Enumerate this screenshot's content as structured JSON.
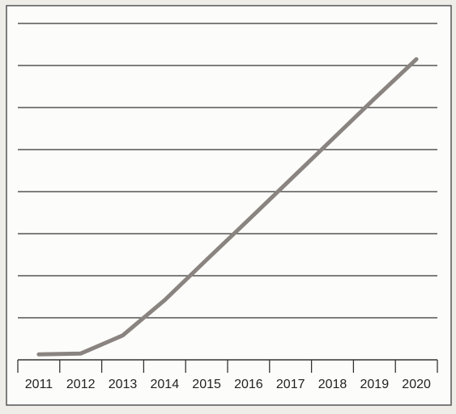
{
  "chart_data": {
    "type": "line",
    "categories": [
      "2011",
      "2012",
      "2013",
      "2014",
      "2015",
      "2016",
      "2017",
      "2018",
      "2019",
      "2020"
    ],
    "values": [
      0.13,
      0.15,
      0.58,
      1.42,
      2.38,
      3.33,
      4.29,
      5.25,
      6.21,
      7.15
    ],
    "color": "#8a8480",
    "ylim": [
      0,
      8
    ],
    "yticks": [
      1,
      2,
      3,
      4,
      5,
      6,
      7,
      8
    ],
    "grid": true
  }
}
